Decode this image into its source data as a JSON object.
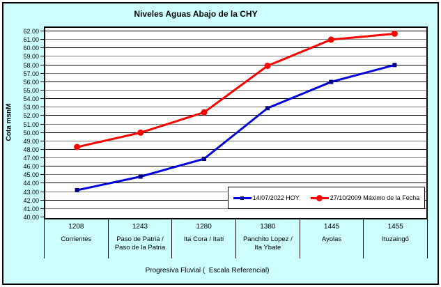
{
  "title": "Niveles Aguas Abajo de la CHY",
  "y_axis": {
    "title": "Cota msnM"
  },
  "x_axis": {
    "title": "Progresiva Fluvial (  Escala Referencial)"
  },
  "legend": [
    {
      "label": "14/07/2022 HOY",
      "marker": "square"
    },
    {
      "label": "27/10/2009 Máximo de la Fecha",
      "marker": "circle"
    }
  ],
  "chart_data": {
    "type": "line",
    "title": "Niveles Aguas Abajo de la CHY",
    "xlabel": "Progresiva Fluvial (  Escala Referencial)",
    "ylabel": "Cota msnM",
    "ylim": [
      40,
      62
    ],
    "ytick_step": 1,
    "ytick_decimals": 2,
    "grid": true,
    "legend_position": "inside-bottom-right",
    "categories": [
      {
        "km": "1208",
        "name_lines": [
          "Corrientes"
        ]
      },
      {
        "km": "1243",
        "name_lines": [
          "Paso de Patria /",
          "Paso de la Patria"
        ]
      },
      {
        "km": "1280",
        "name_lines": [
          "Ita Cora / Itatí"
        ]
      },
      {
        "km": "1380",
        "name_lines": [
          "Panchito Lopez /",
          "Ita Ybate"
        ]
      },
      {
        "km": "1445",
        "name_lines": [
          "Ayolas"
        ]
      },
      {
        "km": "1455",
        "name_lines": [
          "Ituzaingó"
        ]
      }
    ],
    "series": [
      {
        "name": "14/07/2022 HOY",
        "marker": "square",
        "line_color": "#0000DC",
        "marker_color": "#000080",
        "values": [
          43.3,
          44.9,
          47.0,
          53.0,
          56.1,
          58.1
        ]
      },
      {
        "name": "27/10/2009 Máximo de la Fecha",
        "marker": "circle",
        "line_color": "#FF0000",
        "marker_color": "#FF0000",
        "values": [
          48.4,
          50.1,
          52.5,
          58.0,
          61.1,
          61.8
        ]
      }
    ],
    "gridline_colors": {
      "even": "#000000",
      "odd": "#7A7A7A"
    }
  }
}
